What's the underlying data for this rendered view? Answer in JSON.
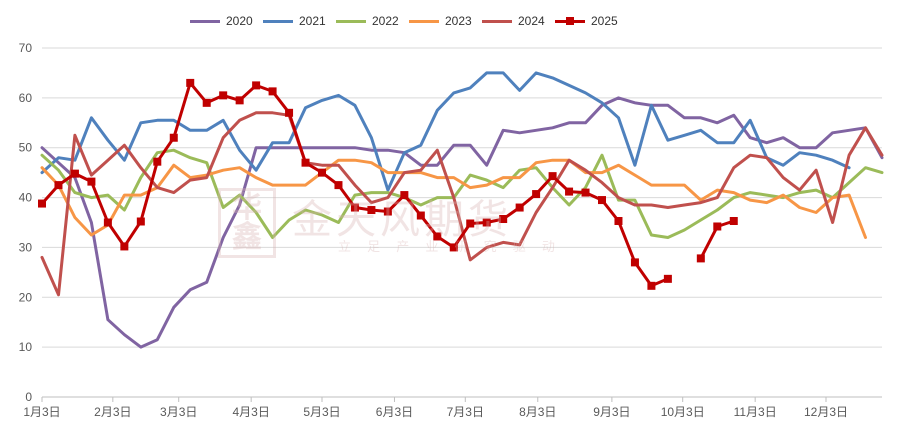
{
  "chart_data": {
    "type": "line",
    "title": "",
    "xlabel": "",
    "ylabel": "",
    "ylim": [
      0,
      70
    ],
    "yticks": [
      0,
      10,
      20,
      30,
      40,
      50,
      60,
      70
    ],
    "xlim": [
      0,
      51
    ],
    "x_ticks": [
      {
        "x": 0,
        "label": "1月3日"
      },
      {
        "x": 4.3,
        "label": "2月3日"
      },
      {
        "x": 8.3,
        "label": "3月3日"
      },
      {
        "x": 12.7,
        "label": "4月3日"
      },
      {
        "x": 17.0,
        "label": "5月3日"
      },
      {
        "x": 21.4,
        "label": "6月3日"
      },
      {
        "x": 25.7,
        "label": "7月3日"
      },
      {
        "x": 30.1,
        "label": "8月3日"
      },
      {
        "x": 34.6,
        "label": "9月3日"
      },
      {
        "x": 38.9,
        "label": "10月3日"
      },
      {
        "x": 43.3,
        "label": "11月3日"
      },
      {
        "x": 47.6,
        "label": "12月3日"
      }
    ],
    "grid": {
      "horizontal": true,
      "vertical": false
    },
    "legend_position": "top",
    "series": [
      {
        "name": "2020",
        "color": "#8064a2",
        "marker": false,
        "values": [
          50,
          47,
          44,
          35,
          15.5,
          12.5,
          10,
          11.5,
          18,
          21.5,
          23,
          32,
          38.5,
          50,
          50,
          50,
          50,
          50,
          50,
          50,
          49.5,
          49.5,
          49,
          46.5,
          46.5,
          50.5,
          50.5,
          46.5,
          53.5,
          53,
          53.5,
          54,
          55,
          55,
          58.5,
          60,
          59,
          58.5,
          58.5,
          56,
          56,
          55,
          56.5,
          52,
          51,
          52,
          50,
          50,
          53,
          53.5,
          54,
          48
        ]
      },
      {
        "name": "2021",
        "color": "#4f81bd",
        "marker": false,
        "values": [
          45,
          48,
          47.5,
          56,
          51.5,
          47.5,
          55,
          55.5,
          55.5,
          53.5,
          53.5,
          55.5,
          49.5,
          45.5,
          51,
          51,
          58,
          59.5,
          60.5,
          58.5,
          52,
          41.5,
          49,
          50.5,
          57.5,
          61,
          62,
          65,
          65,
          61.5,
          65,
          64,
          62.5,
          61,
          59,
          56,
          46.5,
          58.5,
          51.5,
          52.5,
          53.5,
          51,
          51,
          55.5,
          48,
          46.5,
          49,
          48.5,
          47.5,
          46
        ]
      },
      {
        "name": "2022",
        "color": "#9bbb59",
        "marker": false,
        "values": [
          48.5,
          45.5,
          41,
          40,
          40.5,
          37.5,
          44,
          49,
          49.5,
          48,
          47,
          38,
          40.5,
          37,
          32,
          35.5,
          37.5,
          36.5,
          35,
          40.5,
          41,
          41,
          40,
          38.5,
          40,
          40,
          44.5,
          43.5,
          42,
          45.5,
          46,
          42,
          38.5,
          42,
          48.5,
          39.5,
          39.5,
          32.5,
          32,
          33.5,
          35.5,
          37.5,
          40,
          41,
          40.5,
          40,
          41,
          41.5,
          40,
          43,
          46,
          45
        ]
      },
      {
        "name": "2023",
        "color": "#f79646",
        "marker": false,
        "values": [
          46,
          42.5,
          36,
          32.5,
          34.5,
          40.5,
          40.5,
          42,
          46.5,
          44,
          44.5,
          45.5,
          46,
          44,
          42.5,
          42.5,
          42.5,
          45,
          47.5,
          47.5,
          47,
          45,
          45,
          45,
          44,
          44,
          42,
          42.5,
          44,
          44,
          47,
          47.5,
          47.5,
          45,
          45,
          46.5,
          44.5,
          42.5,
          42.5,
          42.5,
          39.5,
          41.5,
          41,
          39.5,
          39,
          40.5,
          38,
          37,
          40,
          40.5,
          32
        ]
      },
      {
        "name": "2024",
        "color": "#c0504d",
        "marker": false,
        "values": [
          28,
          20.5,
          52.5,
          44.5,
          47.5,
          50.5,
          46,
          42,
          41,
          43.5,
          44,
          52,
          55.5,
          57,
          57,
          56.5,
          47,
          46.5,
          46.5,
          42.5,
          39,
          40,
          45,
          45.5,
          49.5,
          40,
          27.5,
          30,
          31,
          30.5,
          37,
          42,
          47.5,
          45.5,
          43,
          40,
          38.5,
          38.5,
          38,
          38.5,
          39,
          40,
          46,
          48.5,
          48,
          44,
          41.5,
          45.5,
          35,
          48.5,
          54,
          48.5
        ]
      },
      {
        "name": "2025",
        "color": "#c00000",
        "marker": true,
        "values": [
          38.8,
          42.5,
          44.8,
          43.2,
          35,
          30.2,
          35.2,
          47.2,
          52,
          63,
          59,
          60.5,
          59.5,
          62.5,
          61.3,
          57,
          47,
          45,
          42.5,
          38,
          37.5,
          37.2,
          40.5,
          36.4,
          32.2,
          30,
          34.8,
          35,
          35.7,
          38,
          40.7,
          44.3,
          41.2,
          41,
          39.5,
          35.3,
          27,
          22.3,
          23.7,
          null,
          27.8,
          34.2,
          35.3
        ]
      }
    ]
  },
  "watermark": {
    "logo_text": "华鑫",
    "main_text": "金天风期货",
    "sub_text": "立 足 产 业  研 究 驱 动"
  }
}
